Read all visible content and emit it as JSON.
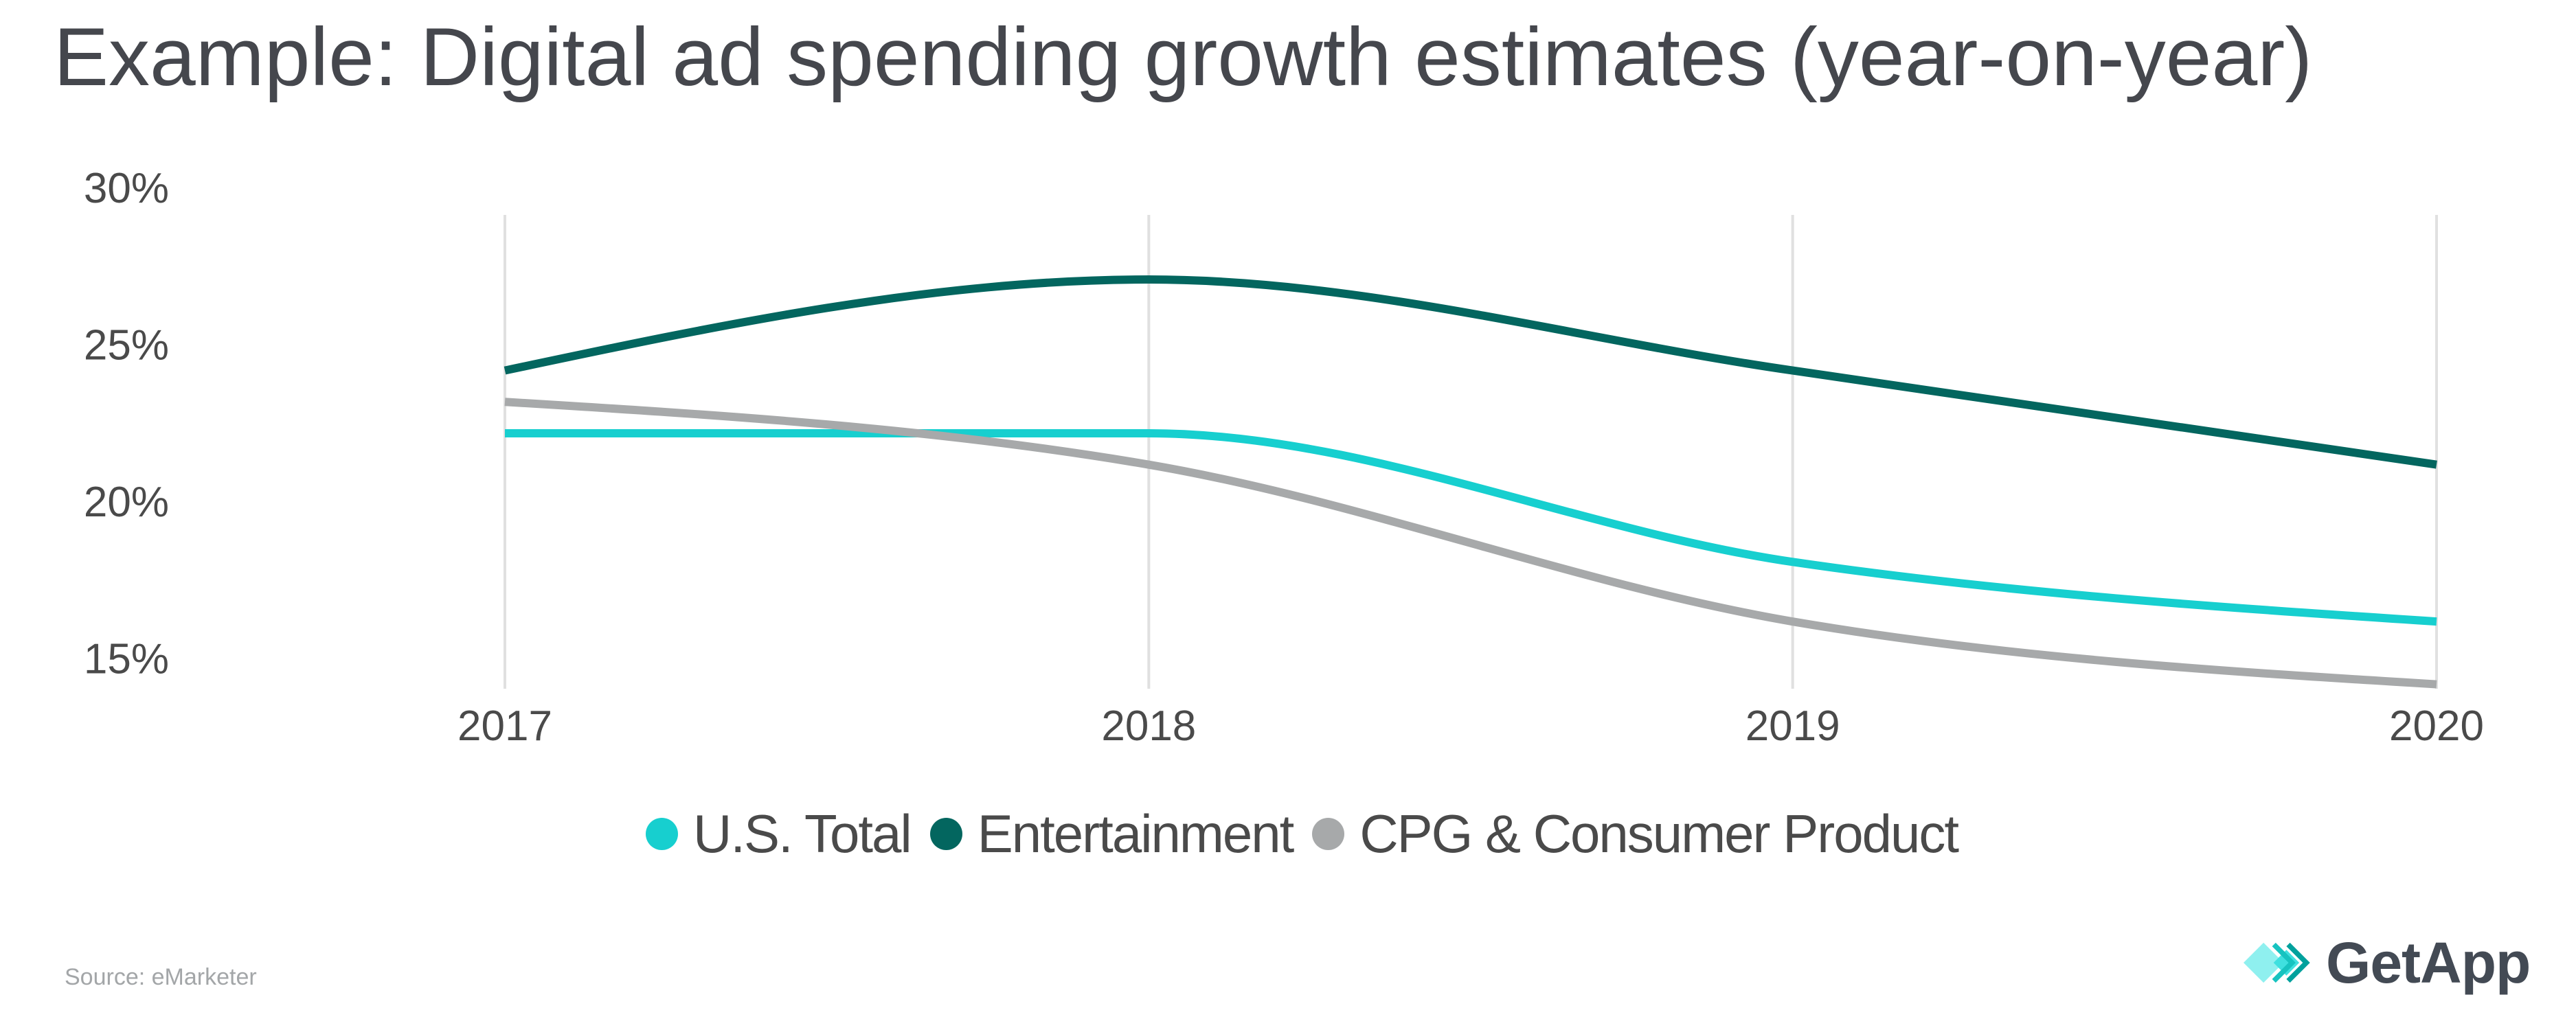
{
  "title": "Example: Digital ad spending growth estimates (year-on-year)",
  "source": "Source: eMarketer",
  "brand": {
    "name": "GetApp",
    "icon": "getapp-chevrons-icon",
    "colors": [
      "#8ff0ef",
      "#3fe0df",
      "#17c3c0",
      "#00a19d"
    ]
  },
  "chart_data": {
    "type": "line",
    "title": "Example: Digital ad spending growth estimates (year-on-year)",
    "xlabel": "",
    "ylabel": "",
    "categories": [
      "2017",
      "2018",
      "2019",
      "2020"
    ],
    "y_ticks": [
      15,
      20,
      25,
      30
    ],
    "y_tick_labels": [
      "15%",
      "20%",
      "25%",
      "30%"
    ],
    "ylim": [
      14,
      30
    ],
    "grid": "vertical",
    "curve": "smooth",
    "legend_position": "bottom-center",
    "series": [
      {
        "name": "U.S. Total",
        "color": "#17cfcf",
        "values": [
          22.2,
          22.2,
          18.1,
          16.2
        ]
      },
      {
        "name": "Entertainment",
        "color": "#03665f",
        "values": [
          24.2,
          27.1,
          24.2,
          21.2
        ]
      },
      {
        "name": "CPG & Consumer Product",
        "color": "#a7a9aa",
        "values": [
          23.2,
          21.2,
          16.2,
          14.2
        ]
      }
    ]
  }
}
